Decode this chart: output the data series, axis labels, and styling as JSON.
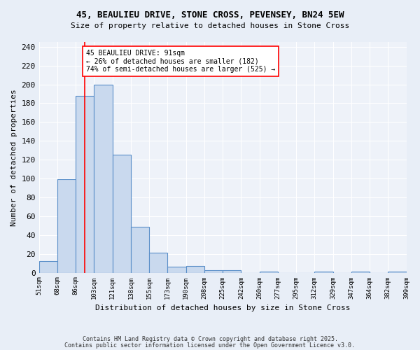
{
  "title_line1": "45, BEAULIEU DRIVE, STONE CROSS, PEVENSEY, BN24 5EW",
  "title_line2": "Size of property relative to detached houses in Stone Cross",
  "xlabel": "Distribution of detached houses by size in Stone Cross",
  "ylabel": "Number of detached properties",
  "bin_labels": [
    "51sqm",
    "68sqm",
    "86sqm",
    "103sqm",
    "121sqm",
    "138sqm",
    "155sqm",
    "173sqm",
    "190sqm",
    "208sqm",
    "225sqm",
    "242sqm",
    "260sqm",
    "277sqm",
    "295sqm",
    "312sqm",
    "329sqm",
    "347sqm",
    "364sqm",
    "382sqm",
    "399sqm"
  ],
  "bar_values": [
    12,
    99,
    188,
    200,
    125,
    49,
    21,
    6,
    7,
    3,
    3,
    0,
    1,
    0,
    0,
    1,
    0,
    1,
    0,
    1
  ],
  "bar_color": "#c9d9ee",
  "bar_edge_color": "#5b8fc9",
  "red_line_x": 2,
  "red_line_label": "45 BEAULIEU DRIVE: 91sqm",
  "annot_line2": "← 26% of detached houses are smaller (182)",
  "annot_line3": "74% of semi-detached houses are larger (525) →",
  "ylim": [
    0,
    245
  ],
  "yticks": [
    0,
    20,
    40,
    60,
    80,
    100,
    120,
    140,
    160,
    180,
    200,
    220,
    240
  ],
  "bg_color": "#e8eef7",
  "plot_bg_color": "#eef2f9",
  "grid_color": "#ffffff",
  "footnote_line1": "Contains HM Land Registry data © Crown copyright and database right 2025.",
  "footnote_line2": "Contains public sector information licensed under the Open Government Licence v3.0."
}
